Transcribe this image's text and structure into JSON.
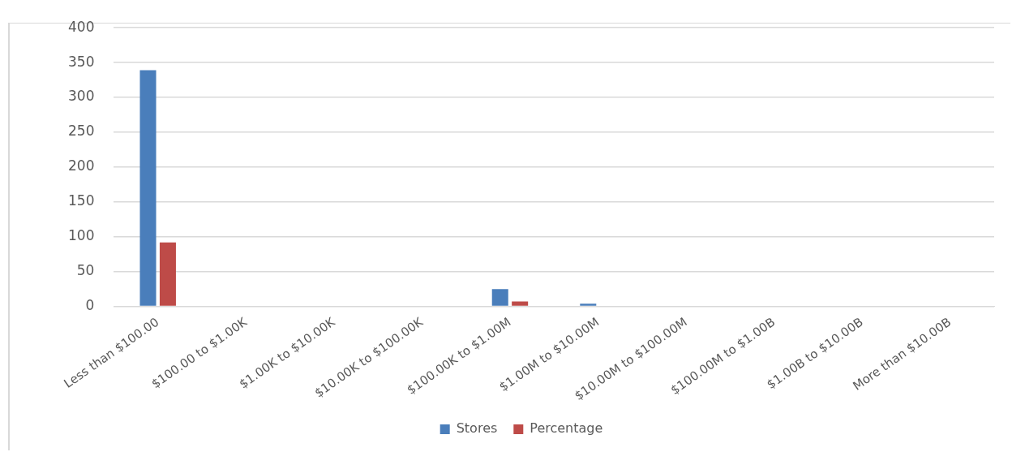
{
  "chart_data": {
    "type": "bar",
    "categories": [
      "Less than $100.00",
      "$100.00 to $1.00K",
      "$1.00K to $10.00K",
      "$10.00K to $100.00K",
      "$100.00K to $1.00M",
      "$1.00M to $10.00M",
      "$10.00M to $100.00M",
      "$100.00M to $1.00B",
      "$1.00B to $10.00B",
      "More than $10.00B"
    ],
    "series": [
      {
        "name": "Stores",
        "color": "#4a7ebb",
        "values": [
          339,
          0,
          0,
          0,
          25,
          4,
          0,
          0,
          0,
          0
        ]
      },
      {
        "name": "Percentage",
        "color": "#be4b48",
        "values": [
          92,
          0,
          0,
          0,
          7,
          null,
          0,
          0,
          0,
          0
        ]
      }
    ],
    "ylim": [
      0,
      400
    ],
    "yticks": [
      0,
      50,
      100,
      150,
      200,
      250,
      300,
      350,
      400
    ],
    "grid": "y",
    "legend": "bottom"
  }
}
